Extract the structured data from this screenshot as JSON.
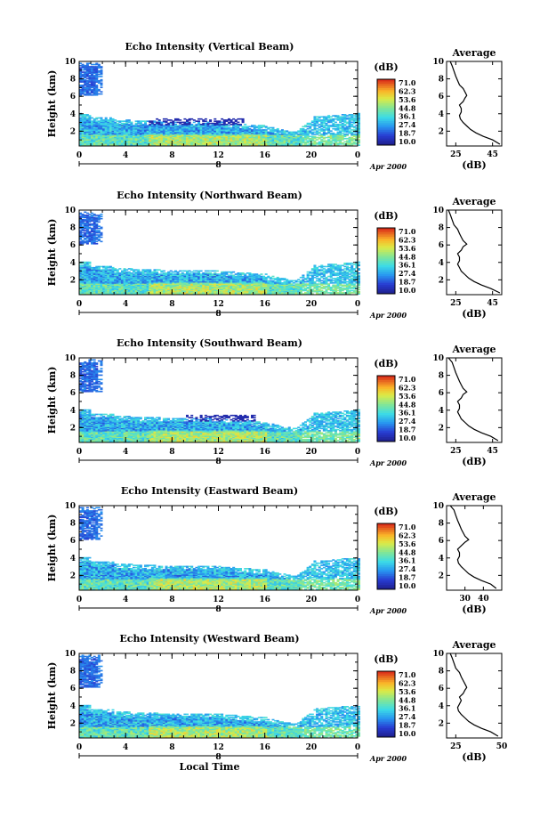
{
  "chart_data": [
    {
      "type": "heatmap",
      "title": "Echo Intensity (Vertical Beam)",
      "ylabel": "Height (km)",
      "xlim": [
        0,
        24
      ],
      "ylim": [
        0.3,
        10
      ],
      "x_ticks": [
        "0",
        "4",
        "8",
        "12",
        "16",
        "20",
        "0"
      ],
      "y_ticks": [
        "2",
        "4",
        "6",
        "8",
        "10"
      ],
      "date_tick": "8",
      "date_label": "Apr 2000",
      "colorbar": {
        "unit": "(dB)",
        "ticks": [
          "71.0",
          "62.3",
          "53.6",
          "44.8",
          "36.1",
          "27.4",
          "18.7",
          "10.0"
        ],
        "min": 10,
        "max": 71
      },
      "profile": {
        "title": "Average",
        "xlabel": "(dB)",
        "xlim": [
          20,
          50
        ],
        "x_ticks": [
          "25",
          "45"
        ],
        "y_ticks": [
          "2",
          "4",
          "6",
          "8",
          "10"
        ],
        "points": [
          [
            49,
            0.5
          ],
          [
            45,
            1.0
          ],
          [
            40,
            1.4
          ],
          [
            36,
            1.8
          ],
          [
            33,
            2.2
          ],
          [
            31,
            2.6
          ],
          [
            29,
            3.0
          ],
          [
            27.5,
            3.4
          ],
          [
            27,
            3.8
          ],
          [
            28,
            4.2
          ],
          [
            28,
            4.6
          ],
          [
            27,
            5.0
          ],
          [
            29,
            5.4
          ],
          [
            30,
            5.8
          ],
          [
            31,
            6.1
          ],
          [
            30,
            6.5
          ],
          [
            29,
            6.9
          ],
          [
            27,
            7.3
          ],
          [
            26,
            7.8
          ],
          [
            25,
            8.3
          ],
          [
            24,
            8.9
          ],
          [
            23,
            9.5
          ],
          [
            22,
            10.0
          ]
        ]
      }
    },
    {
      "type": "heatmap",
      "title": "Echo Intensity (Northward Beam)",
      "ylabel": "Height (km)",
      "xlim": [
        0,
        24
      ],
      "ylim": [
        0.3,
        10
      ],
      "x_ticks": [
        "0",
        "4",
        "8",
        "12",
        "16",
        "20",
        "0"
      ],
      "y_ticks": [
        "2",
        "4",
        "6",
        "8",
        "10"
      ],
      "date_tick": "8",
      "date_label": "Apr 2000",
      "colorbar": {
        "unit": "(dB)",
        "ticks": [
          "71.0",
          "62.3",
          "53.6",
          "44.8",
          "36.1",
          "27.4",
          "18.7",
          "10.0"
        ],
        "min": 10,
        "max": 71
      },
      "profile": {
        "title": "Average",
        "xlabel": "(dB)",
        "xlim": [
          20,
          50
        ],
        "x_ticks": [
          "25",
          "45"
        ],
        "y_ticks": [
          "2",
          "4",
          "6",
          "8",
          "10"
        ],
        "points": [
          [
            49,
            0.5
          ],
          [
            44,
            1.0
          ],
          [
            39,
            1.4
          ],
          [
            35,
            1.8
          ],
          [
            32,
            2.2
          ],
          [
            30,
            2.6
          ],
          [
            28,
            3.0
          ],
          [
            27,
            3.4
          ],
          [
            26,
            3.8
          ],
          [
            27,
            4.2
          ],
          [
            27,
            4.6
          ],
          [
            26,
            5.0
          ],
          [
            28,
            5.4
          ],
          [
            29,
            5.8
          ],
          [
            31,
            6.1
          ],
          [
            29,
            6.5
          ],
          [
            28,
            6.9
          ],
          [
            27,
            7.3
          ],
          [
            26,
            7.8
          ],
          [
            24,
            8.3
          ],
          [
            23,
            8.9
          ],
          [
            22,
            9.5
          ],
          [
            21,
            10.0
          ]
        ]
      }
    },
    {
      "type": "heatmap",
      "title": "Echo Intensity (Southward Beam)",
      "ylabel": "Height (km)",
      "xlim": [
        0,
        24
      ],
      "ylim": [
        0.3,
        10
      ],
      "x_ticks": [
        "0",
        "4",
        "8",
        "12",
        "16",
        "20",
        "0"
      ],
      "y_ticks": [
        "2",
        "4",
        "6",
        "8",
        "10"
      ],
      "date_tick": "8",
      "date_label": "Apr 2000",
      "colorbar": {
        "unit": "(dB)",
        "ticks": [
          "71.0",
          "62.3",
          "53.6",
          "44.8",
          "36.1",
          "27.4",
          "18.7",
          "10.0"
        ],
        "min": 10,
        "max": 71
      },
      "profile": {
        "title": "Average",
        "xlabel": "(dB)",
        "xlim": [
          20,
          50
        ],
        "x_ticks": [
          "25",
          "45"
        ],
        "y_ticks": [
          "2",
          "4",
          "6",
          "8",
          "10"
        ],
        "points": [
          [
            48,
            0.5
          ],
          [
            44,
            1.0
          ],
          [
            39,
            1.4
          ],
          [
            35,
            1.8
          ],
          [
            32,
            2.2
          ],
          [
            30,
            2.6
          ],
          [
            28,
            3.0
          ],
          [
            27,
            3.4
          ],
          [
            26,
            3.8
          ],
          [
            27,
            4.2
          ],
          [
            27,
            4.6
          ],
          [
            26,
            5.0
          ],
          [
            28,
            5.4
          ],
          [
            29,
            5.8
          ],
          [
            31,
            6.1
          ],
          [
            29,
            6.5
          ],
          [
            28,
            6.9
          ],
          [
            27,
            7.3
          ],
          [
            26,
            7.8
          ],
          [
            25,
            8.3
          ],
          [
            24,
            8.9
          ],
          [
            23,
            9.5
          ],
          [
            21,
            10.0
          ]
        ]
      }
    },
    {
      "type": "heatmap",
      "title": "Echo Intensity (Eastward Beam)",
      "ylabel": "Height (km)",
      "xlim": [
        0,
        24
      ],
      "ylim": [
        0.3,
        10
      ],
      "x_ticks": [
        "0",
        "4",
        "8",
        "12",
        "16",
        "20",
        "0"
      ],
      "y_ticks": [
        "2",
        "4",
        "6",
        "8",
        "10"
      ],
      "date_tick": "8",
      "date_label": "Apr 2000",
      "colorbar": {
        "unit": "(dB)",
        "ticks": [
          "71.0",
          "62.3",
          "53.6",
          "44.8",
          "36.1",
          "27.4",
          "18.7",
          "10.0"
        ],
        "min": 10,
        "max": 71
      },
      "profile": {
        "title": "Average",
        "xlabel": "(dB)",
        "xlim": [
          20,
          50
        ],
        "x_ticks": [
          "30",
          "40"
        ],
        "y_ticks": [
          "2",
          "4",
          "6",
          "8",
          "10"
        ],
        "points": [
          [
            47,
            0.5
          ],
          [
            44,
            1.0
          ],
          [
            39,
            1.4
          ],
          [
            35,
            1.8
          ],
          [
            32,
            2.2
          ],
          [
            30,
            2.6
          ],
          [
            28,
            3.0
          ],
          [
            26.5,
            3.4
          ],
          [
            26,
            3.8
          ],
          [
            27,
            4.2
          ],
          [
            27,
            4.6
          ],
          [
            26,
            5.0
          ],
          [
            28,
            5.4
          ],
          [
            30,
            5.8
          ],
          [
            32,
            6.1
          ],
          [
            30,
            6.5
          ],
          [
            29,
            6.9
          ],
          [
            28,
            7.3
          ],
          [
            27,
            7.8
          ],
          [
            26,
            8.3
          ],
          [
            25,
            8.9
          ],
          [
            24,
            9.5
          ],
          [
            22,
            10.0
          ]
        ]
      }
    },
    {
      "type": "heatmap",
      "title": "Echo Intensity (Westward Beam)",
      "ylabel": "Height (km)",
      "xlabel": "Local Time",
      "xlim": [
        0,
        24
      ],
      "ylim": [
        0.3,
        10
      ],
      "x_ticks": [
        "0",
        "4",
        "8",
        "12",
        "16",
        "20",
        "0"
      ],
      "y_ticks": [
        "2",
        "4",
        "6",
        "8",
        "10"
      ],
      "date_tick": "8",
      "date_label": "Apr 2000",
      "colorbar": {
        "unit": "(dB)",
        "ticks": [
          "71.0",
          "62.3",
          "53.6",
          "44.8",
          "36.1",
          "27.4",
          "18.7",
          "10.0"
        ],
        "min": 10,
        "max": 71
      },
      "profile": {
        "title": "Average",
        "xlabel": "(dB)",
        "xlim": [
          20,
          50
        ],
        "x_ticks": [
          "25",
          "50"
        ],
        "y_ticks": [
          "2",
          "4",
          "6",
          "8",
          "10"
        ],
        "points": [
          [
            48,
            0.5
          ],
          [
            44,
            1.0
          ],
          [
            39,
            1.4
          ],
          [
            35,
            1.8
          ],
          [
            32,
            2.2
          ],
          [
            30,
            2.6
          ],
          [
            28,
            3.0
          ],
          [
            26.5,
            3.4
          ],
          [
            26,
            3.8
          ],
          [
            27,
            4.2
          ],
          [
            28,
            4.6
          ],
          [
            27,
            5.0
          ],
          [
            29,
            5.4
          ],
          [
            30,
            5.8
          ],
          [
            31,
            6.1
          ],
          [
            30,
            6.5
          ],
          [
            29,
            6.9
          ],
          [
            28,
            7.3
          ],
          [
            27,
            7.8
          ],
          [
            25,
            8.3
          ],
          [
            24,
            8.9
          ],
          [
            23,
            9.5
          ],
          [
            22,
            10.0
          ]
        ]
      }
    }
  ]
}
